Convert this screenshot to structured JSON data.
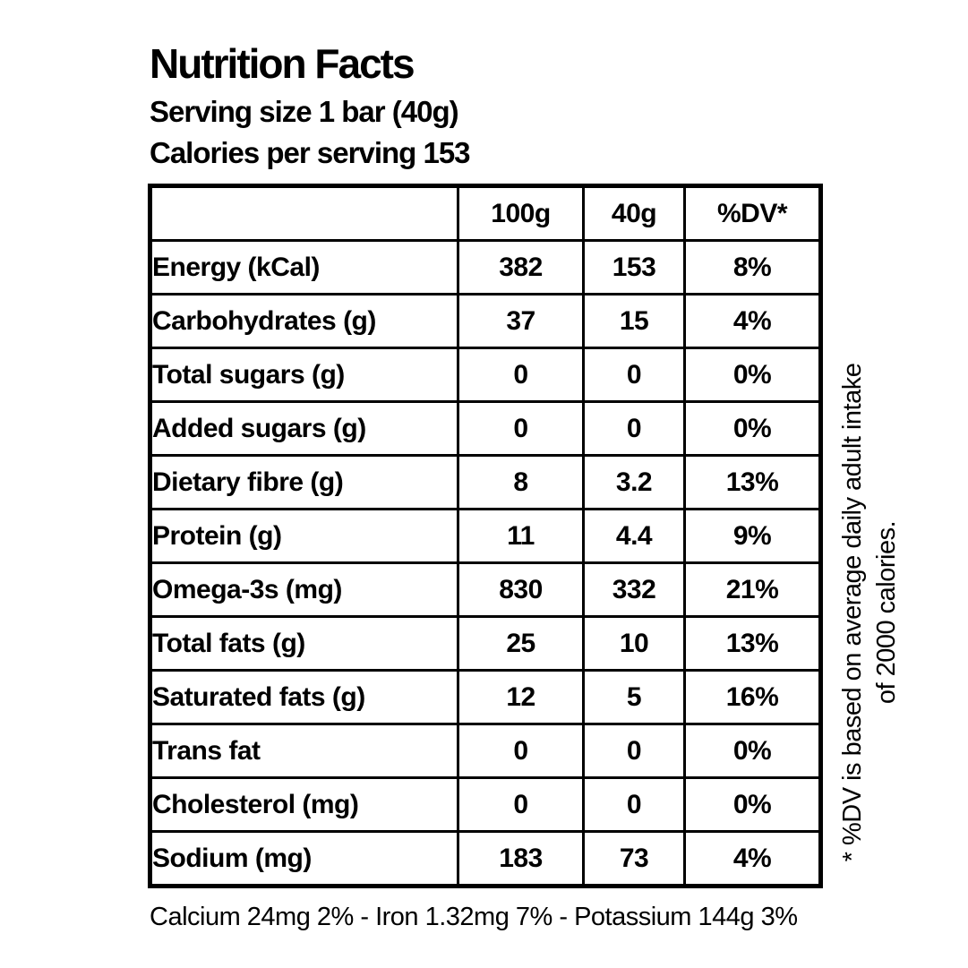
{
  "header": {
    "title": "Nutrition Facts",
    "serving_size": "Serving size 1 bar (40g)",
    "calories_line": "Calories per serving 153"
  },
  "table": {
    "columns": [
      "100g",
      "40g",
      "%DV*"
    ],
    "rows": [
      {
        "label": "Energy (kCal)",
        "per100g": "382",
        "per40g": "153",
        "dv": "8%"
      },
      {
        "label": "Carbohydrates (g)",
        "per100g": "37",
        "per40g": "15",
        "dv": "4%"
      },
      {
        "label": "Total sugars (g)",
        "per100g": "0",
        "per40g": "0",
        "dv": "0%"
      },
      {
        "label": "Added sugars (g)",
        "per100g": "0",
        "per40g": "0",
        "dv": "0%"
      },
      {
        "label": "Dietary fibre (g)",
        "per100g": "8",
        "per40g": "3.2",
        "dv": "13%"
      },
      {
        "label": "Protein (g)",
        "per100g": "11",
        "per40g": "4.4",
        "dv": "9%"
      },
      {
        "label": "Omega-3s (mg)",
        "per100g": "830",
        "per40g": "332",
        "dv": "21%"
      },
      {
        "label": "Total fats (g)",
        "per100g": "25",
        "per40g": "10",
        "dv": "13%"
      },
      {
        "label": "Saturated fats (g)",
        "per100g": "12",
        "per40g": "5",
        "dv": "16%"
      },
      {
        "label": "Trans fat",
        "per100g": "0",
        "per40g": "0",
        "dv": "0%"
      },
      {
        "label": "Cholesterol (mg)",
        "per100g": "0",
        "per40g": "0",
        "dv": "0%"
      },
      {
        "label": "Sodium (mg)",
        "per100g": "183",
        "per40g": "73",
        "dv": "4%"
      }
    ]
  },
  "vertical_note": {
    "line1": "* %DV is based on average daily adult intake",
    "line2": "of 2000 calories."
  },
  "minerals_line": "Calcium 24mg 2% - Iron 1.32mg 7% - Potassium 144g 3%",
  "colors": {
    "text": "#000000",
    "background": "#ffffff",
    "border": "#000000"
  }
}
